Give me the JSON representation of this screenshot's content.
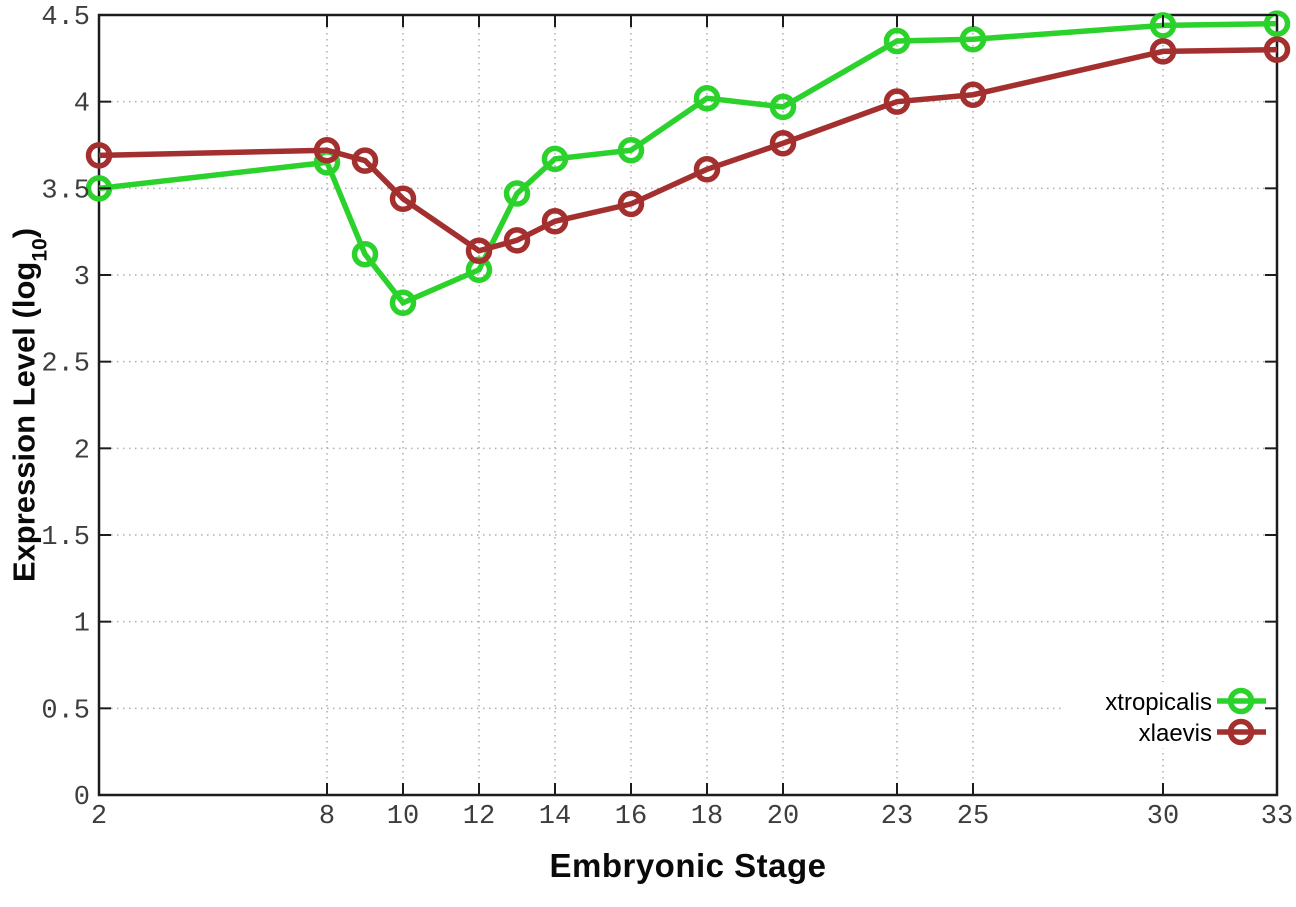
{
  "figure": {
    "background": "#ffffff",
    "border_color": "#1c1c1c",
    "grid_color": "#aeaeae",
    "tick_label_color": "#3d3d3d"
  },
  "chart_data": {
    "type": "line",
    "title": "",
    "xlabel": "Embryonic Stage",
    "ylabel": {
      "prefix": "Expression Level (log",
      "subscript": "10",
      "suffix": ")"
    },
    "marker": "open-circle",
    "grid": true,
    "legend_position": "bottom-right",
    "xlim": [
      2,
      33
    ],
    "ylim": [
      0,
      4.5
    ],
    "x": [
      2,
      8,
      9,
      10,
      12,
      13,
      14,
      16,
      18,
      20,
      23,
      25,
      30,
      33
    ],
    "series": [
      {
        "name": "xtropicalis",
        "color": "#2bd22b",
        "values": [
          3.5,
          3.65,
          3.12,
          2.84,
          3.03,
          3.47,
          3.67,
          3.72,
          4.02,
          3.97,
          4.35,
          4.36,
          4.44,
          4.45
        ]
      },
      {
        "name": "xlaevis",
        "color": "#a42f2f",
        "values": [
          3.69,
          3.72,
          3.66,
          3.44,
          3.14,
          3.2,
          3.31,
          3.41,
          3.61,
          3.76,
          4.0,
          4.04,
          4.29,
          4.3
        ]
      }
    ],
    "x_ticks": {
      "values": [
        2,
        8,
        10,
        12,
        14,
        16,
        18,
        20,
        23,
        25,
        30,
        33
      ],
      "labels": [
        "2",
        "8",
        "10",
        "12",
        "14",
        "16",
        "18",
        "20",
        "23",
        "25",
        "30",
        "33"
      ]
    },
    "y_ticks": {
      "values": [
        0,
        0.5,
        1,
        1.5,
        2,
        2.5,
        3,
        3.5,
        4,
        4.5
      ],
      "labels": [
        "0",
        "0.5",
        "1",
        "1.5",
        "2",
        "2.5",
        "3",
        "3.5",
        "4",
        "4.5"
      ]
    }
  }
}
